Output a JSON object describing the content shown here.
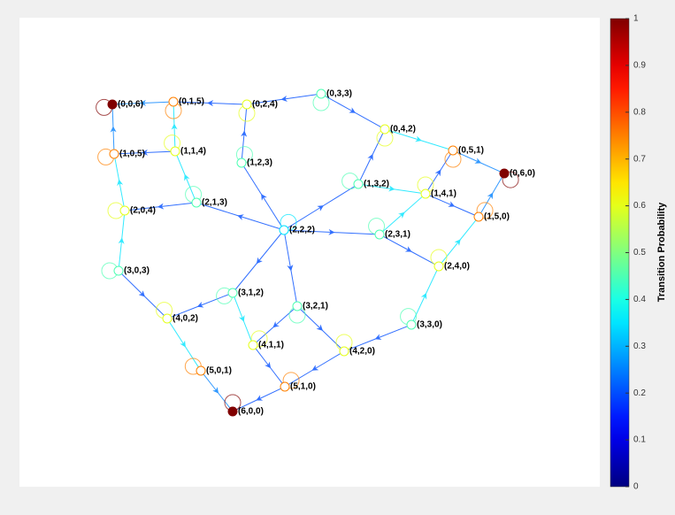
{
  "graph": {
    "nodes": [
      {
        "label": "(0,0,6)"
      },
      {
        "label": "(0,1,5)"
      },
      {
        "label": "(0,2,4)"
      },
      {
        "label": "(0,3,3)"
      },
      {
        "label": "(0,4,2)"
      },
      {
        "label": "(0,5,1)"
      },
      {
        "label": "(0,6,0)"
      },
      {
        "label": "(1,0,5)"
      },
      {
        "label": "(1,1,4)"
      },
      {
        "label": "(1,2,3)"
      },
      {
        "label": "(1,3,2)"
      },
      {
        "label": "(1,4,1)"
      },
      {
        "label": "(1,5,0)"
      },
      {
        "label": "(2,0,4)"
      },
      {
        "label": "(2,1,3)"
      },
      {
        "label": "(2,2,2)"
      },
      {
        "label": "(2,3,1)"
      },
      {
        "label": "(2,4,0)"
      },
      {
        "label": "(3,0,3)"
      },
      {
        "label": "(3,1,2)"
      },
      {
        "label": "(3,2,1)"
      },
      {
        "label": "(3,3,0)"
      },
      {
        "label": "(4,0,2)"
      },
      {
        "label": "(4,1,1)"
      },
      {
        "label": "(4,2,0)"
      },
      {
        "label": "(5,0,1)"
      },
      {
        "label": "(5,1,0)"
      },
      {
        "label": "(6,0,0)"
      }
    ],
    "edges": [
      {
        "source": 1,
        "target": 0,
        "probability": 0.25
      },
      {
        "source": 2,
        "target": 1,
        "probability": 0.2
      },
      {
        "source": 3,
        "target": 2,
        "probability": 0.2
      },
      {
        "source": 3,
        "target": 4,
        "probability": 0.2
      },
      {
        "source": 4,
        "target": 5,
        "probability": 0.35
      },
      {
        "source": 5,
        "target": 6,
        "probability": 0.25
      },
      {
        "source": 7,
        "target": 0,
        "probability": 0.25
      },
      {
        "source": 8,
        "target": 7,
        "probability": 0.2
      },
      {
        "source": 8,
        "target": 1,
        "probability": 0.35
      },
      {
        "source": 9,
        "target": 2,
        "probability": 0.2
      },
      {
        "source": 10,
        "target": 4,
        "probability": 0.2
      },
      {
        "source": 10,
        "target": 11,
        "probability": 0.35
      },
      {
        "source": 11,
        "target": 5,
        "probability": 0.2
      },
      {
        "source": 11,
        "target": 12,
        "probability": 0.2
      },
      {
        "source": 12,
        "target": 6,
        "probability": 0.25
      },
      {
        "source": 13,
        "target": 7,
        "probability": 0.35
      },
      {
        "source": 14,
        "target": 13,
        "probability": 0.2
      },
      {
        "source": 14,
        "target": 8,
        "probability": 0.35
      },
      {
        "source": 15,
        "target": 14,
        "probability": 0.2
      },
      {
        "source": 15,
        "target": 9,
        "probability": 0.2
      },
      {
        "source": 15,
        "target": 10,
        "probability": 0.2
      },
      {
        "source": 15,
        "target": 16,
        "probability": 0.2
      },
      {
        "source": 15,
        "target": 19,
        "probability": 0.2
      },
      {
        "source": 15,
        "target": 20,
        "probability": 0.2
      },
      {
        "source": 16,
        "target": 11,
        "probability": 0.35
      },
      {
        "source": 16,
        "target": 17,
        "probability": 0.2
      },
      {
        "source": 17,
        "target": 12,
        "probability": 0.35
      },
      {
        "source": 18,
        "target": 13,
        "probability": 0.35
      },
      {
        "source": 18,
        "target": 22,
        "probability": 0.2
      },
      {
        "source": 19,
        "target": 22,
        "probability": 0.2
      },
      {
        "source": 19,
        "target": 23,
        "probability": 0.35
      },
      {
        "source": 20,
        "target": 23,
        "probability": 0.2
      },
      {
        "source": 20,
        "target": 24,
        "probability": 0.2
      },
      {
        "source": 21,
        "target": 17,
        "probability": 0.35
      },
      {
        "source": 21,
        "target": 24,
        "probability": 0.2
      },
      {
        "source": 22,
        "target": 25,
        "probability": 0.35
      },
      {
        "source": 23,
        "target": 26,
        "probability": 0.2
      },
      {
        "source": 24,
        "target": 26,
        "probability": 0.2
      },
      {
        "source": 25,
        "target": 27,
        "probability": 0.25
      },
      {
        "source": 26,
        "target": 27,
        "probability": 0.2
      },
      {
        "source": 0,
        "target": 0,
        "probability": 1
      },
      {
        "source": 1,
        "target": 1,
        "probability": 0.75
      },
      {
        "source": 2,
        "target": 2,
        "probability": 0.6
      },
      {
        "source": 3,
        "target": 3,
        "probability": 0.45
      },
      {
        "source": 4,
        "target": 4,
        "probability": 0.6
      },
      {
        "source": 5,
        "target": 5,
        "probability": 0.75
      },
      {
        "source": 6,
        "target": 6,
        "probability": 1
      },
      {
        "source": 7,
        "target": 7,
        "probability": 0.75
      },
      {
        "source": 8,
        "target": 8,
        "probability": 0.6
      },
      {
        "source": 9,
        "target": 9,
        "probability": 0.45
      },
      {
        "source": 10,
        "target": 10,
        "probability": 0.45
      },
      {
        "source": 11,
        "target": 11,
        "probability": 0.6
      },
      {
        "source": 12,
        "target": 12,
        "probability": 0.75
      },
      {
        "source": 13,
        "target": 13,
        "probability": 0.6
      },
      {
        "source": 14,
        "target": 14,
        "probability": 0.45
      },
      {
        "source": 15,
        "target": 15,
        "probability": 0.35
      },
      {
        "source": 16,
        "target": 16,
        "probability": 0.45
      },
      {
        "source": 17,
        "target": 17,
        "probability": 0.6
      },
      {
        "source": 18,
        "target": 18,
        "probability": 0.45
      },
      {
        "source": 19,
        "target": 19,
        "probability": 0.45
      },
      {
        "source": 20,
        "target": 20,
        "probability": 0.45
      },
      {
        "source": 21,
        "target": 21,
        "probability": 0.45
      },
      {
        "source": 22,
        "target": 22,
        "probability": 0.6
      },
      {
        "source": 23,
        "target": 23,
        "probability": 0.6
      },
      {
        "source": 24,
        "target": 24,
        "probability": 0.6
      },
      {
        "source": 25,
        "target": 25,
        "probability": 0.75
      },
      {
        "source": 26,
        "target": 26,
        "probability": 0.75
      },
      {
        "source": 27,
        "target": 27,
        "probability": 1
      }
    ]
  },
  "colorbar": {
    "label": "Transition Probability",
    "lim": [
      0,
      1
    ],
    "ticks": [
      0,
      0.1,
      0.2,
      0.3,
      0.4,
      0.5,
      0.6,
      0.7,
      0.8,
      0.9,
      1
    ]
  }
}
